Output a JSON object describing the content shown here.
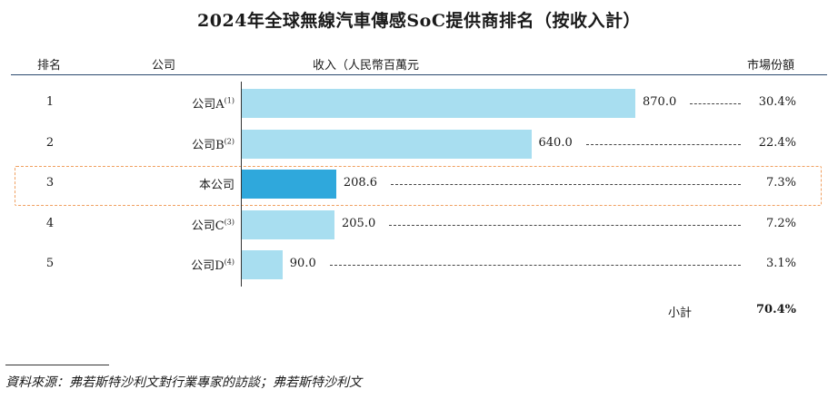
{
  "chart_data": {
    "type": "bar",
    "orientation": "horizontal",
    "title": "2024年全球無線汽車傳感SoC提供商排名（按收入計）",
    "headers": {
      "rank": "排名",
      "company": "公司",
      "revenue": "收入（人民幣百萬元",
      "share": "市場份額"
    },
    "rows": [
      {
        "rank": "1",
        "company": "公司A",
        "note": "(1)",
        "value": 870.0,
        "value_label": "870.0",
        "share": "30.4%",
        "highlight": false
      },
      {
        "rank": "2",
        "company": "公司B",
        "note": "(2)",
        "value": 640.0,
        "value_label": "640.0",
        "share": "22.4%",
        "highlight": false
      },
      {
        "rank": "3",
        "company": "本公司",
        "note": "",
        "value": 208.6,
        "value_label": "208.6",
        "share": "7.3%",
        "highlight": true
      },
      {
        "rank": "4",
        "company": "公司C",
        "note": "(3)",
        "value": 205.0,
        "value_label": "205.0",
        "share": "7.2%",
        "highlight": false
      },
      {
        "rank": "5",
        "company": "公司D",
        "note": "(4)",
        "value": 90.0,
        "value_label": "90.0",
        "share": "3.1%",
        "highlight": false
      }
    ],
    "subtotal_label": "小計",
    "subtotal_value": "70.4%",
    "xlim": [
      0,
      1000
    ],
    "colors": {
      "bar": "#a8def0",
      "highlight_bar": "#2fa8dc",
      "highlight_border": "#f0a060"
    }
  },
  "footnote": {
    "source": "資料來源：弗若斯特沙利文對行業專家的訪談；弗若斯特沙利文"
  }
}
